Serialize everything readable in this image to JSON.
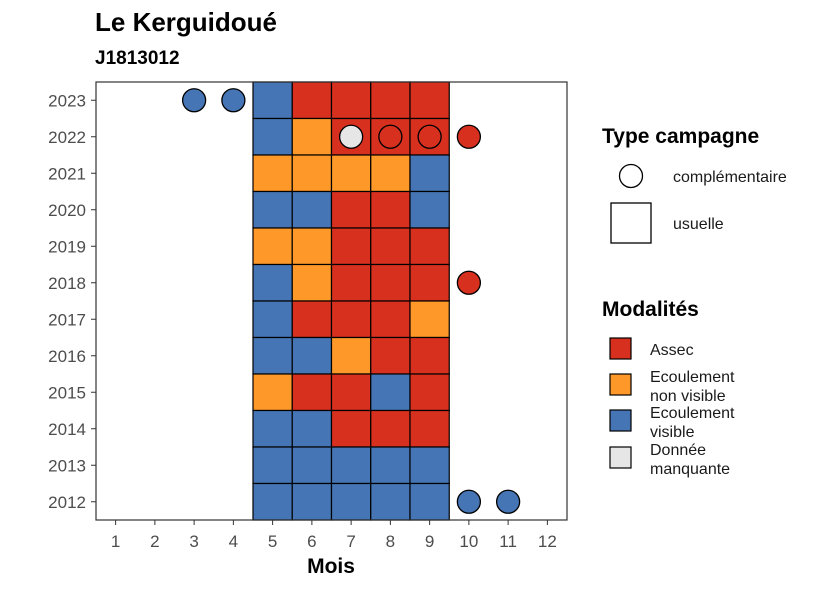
{
  "chart_data": {
    "type": "heatmap",
    "title": "Le Kerguidoué",
    "subtitle": "J1813012",
    "xlabel": "Mois",
    "ylabel": "",
    "x_ticks": [
      "1",
      "2",
      "3",
      "4",
      "5",
      "6",
      "7",
      "8",
      "9",
      "10",
      "11",
      "12"
    ],
    "y_ticks": [
      "2012",
      "2013",
      "2014",
      "2015",
      "2016",
      "2017",
      "2018",
      "2019",
      "2020",
      "2021",
      "2022",
      "2023"
    ],
    "xlim": [
      0.5,
      12.5
    ],
    "ylim": [
      2011.5,
      2023.5
    ],
    "grid": false,
    "legend_position": "right",
    "colors": {
      "Assec": "#d7301f",
      "Ecoulement non visible": "#fe9929",
      "Ecoulement visible": "#4575b4",
      "Donnée manquante": "#e6e6e6"
    },
    "usuelle": [
      {
        "year": 2023,
        "months": [
          "Ecoulement visible",
          "Assec",
          "Assec",
          "Assec",
          "Assec"
        ]
      },
      {
        "year": 2022,
        "months": [
          "Ecoulement visible",
          "Ecoulement non visible",
          "Assec",
          "Assec",
          "Assec"
        ]
      },
      {
        "year": 2021,
        "months": [
          "Ecoulement non visible",
          "Ecoulement non visible",
          "Ecoulement non visible",
          "Ecoulement non visible",
          "Ecoulement visible"
        ]
      },
      {
        "year": 2020,
        "months": [
          "Ecoulement visible",
          "Ecoulement visible",
          "Assec",
          "Assec",
          "Ecoulement visible"
        ]
      },
      {
        "year": 2019,
        "months": [
          "Ecoulement non visible",
          "Ecoulement non visible",
          "Assec",
          "Assec",
          "Assec"
        ]
      },
      {
        "year": 2018,
        "months": [
          "Ecoulement visible",
          "Ecoulement non visible",
          "Assec",
          "Assec",
          "Assec"
        ]
      },
      {
        "year": 2017,
        "months": [
          "Ecoulement visible",
          "Assec",
          "Assec",
          "Assec",
          "Ecoulement non visible"
        ]
      },
      {
        "year": 2016,
        "months": [
          "Ecoulement visible",
          "Ecoulement visible",
          "Ecoulement non visible",
          "Assec",
          "Assec"
        ]
      },
      {
        "year": 2015,
        "months": [
          "Ecoulement non visible",
          "Assec",
          "Assec",
          "Ecoulement visible",
          "Assec"
        ]
      },
      {
        "year": 2014,
        "months": [
          "Ecoulement visible",
          "Ecoulement visible",
          "Assec",
          "Assec",
          "Assec"
        ]
      },
      {
        "year": 2013,
        "months": [
          "Ecoulement visible",
          "Ecoulement visible",
          "Ecoulement visible",
          "Ecoulement visible",
          "Ecoulement visible"
        ]
      },
      {
        "year": 2012,
        "months": [
          "Ecoulement visible",
          "Ecoulement visible",
          "Ecoulement visible",
          "Ecoulement visible",
          "Ecoulement visible"
        ]
      }
    ],
    "usuelle_months": [
      5,
      6,
      7,
      8,
      9
    ],
    "complementaire": [
      {
        "year": 2023,
        "month": 3,
        "modalite": "Ecoulement visible"
      },
      {
        "year": 2023,
        "month": 4,
        "modalite": "Ecoulement visible"
      },
      {
        "year": 2022,
        "month": 7,
        "modalite": "Donnée manquante"
      },
      {
        "year": 2022,
        "month": 8,
        "modalite": "Assec"
      },
      {
        "year": 2022,
        "month": 9,
        "modalite": "Assec"
      },
      {
        "year": 2022,
        "month": 10,
        "modalite": "Assec"
      },
      {
        "year": 2018,
        "month": 10,
        "modalite": "Assec"
      },
      {
        "year": 2012,
        "month": 10,
        "modalite": "Ecoulement visible"
      },
      {
        "year": 2012,
        "month": 11,
        "modalite": "Ecoulement visible"
      }
    ],
    "legend_type": {
      "title": "Type campagne",
      "items": [
        {
          "label": "complémentaire",
          "shape": "circle"
        },
        {
          "label": "usuelle",
          "shape": "square"
        }
      ]
    },
    "legend_modalites": {
      "title": "Modalités",
      "items": [
        {
          "key": "Assec",
          "label_lines": [
            "Assec"
          ]
        },
        {
          "key": "Ecoulement non visible",
          "label_lines": [
            "Ecoulement",
            "non visible"
          ]
        },
        {
          "key": "Ecoulement visible",
          "label_lines": [
            "Ecoulement",
            "visible"
          ]
        },
        {
          "key": "Donnée manquante",
          "label_lines": [
            "Donnée",
            "manquante"
          ]
        }
      ]
    }
  }
}
